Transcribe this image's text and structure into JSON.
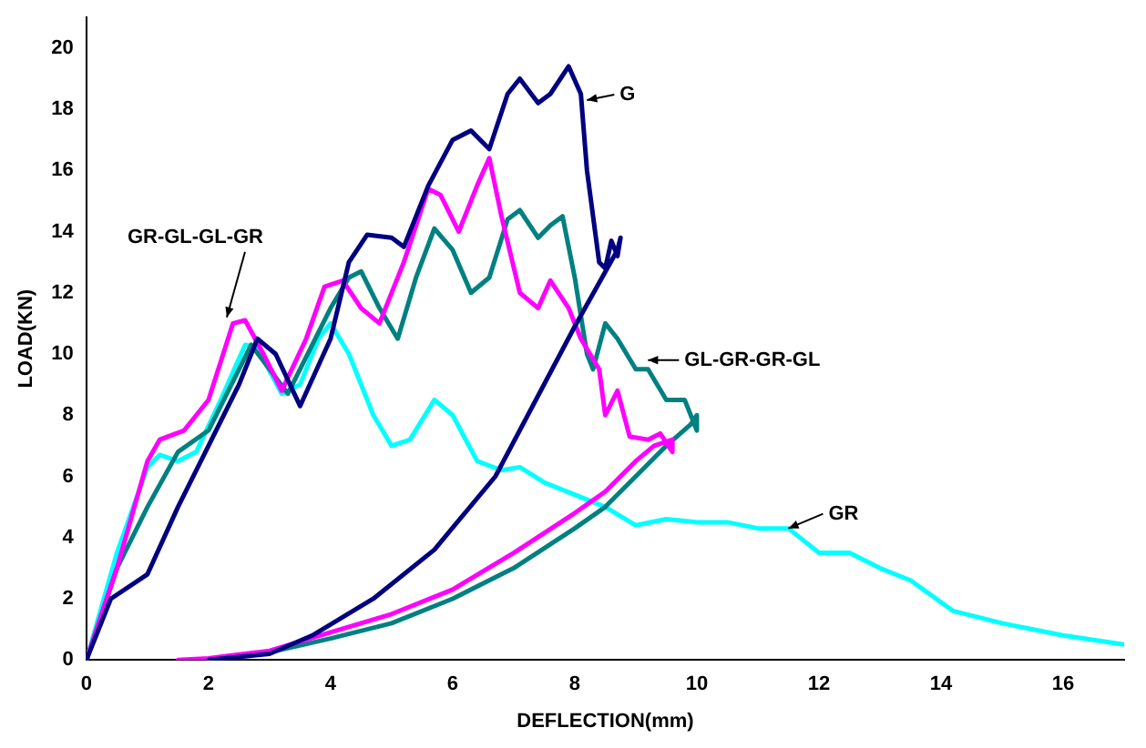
{
  "chart_data": {
    "type": "line",
    "xlabel": "DEFLECTION(mm)",
    "ylabel": "LOAD(KN)",
    "xlim": [
      0,
      17
    ],
    "ylim": [
      0,
      21
    ],
    "xticks": [
      0,
      2,
      4,
      6,
      8,
      10,
      12,
      14,
      16
    ],
    "yticks": [
      0,
      2,
      4,
      6,
      8,
      10,
      12,
      14,
      16,
      18,
      20
    ],
    "grid": false,
    "legend": false,
    "marker": "none",
    "line_style": "solid",
    "series": [
      {
        "color": "#000080",
        "x": [
          0,
          0.4,
          1,
          1.5,
          2,
          2.5,
          2.8,
          3.1,
          3.5,
          4,
          4.3,
          4.6,
          5,
          5.2,
          5.6,
          6,
          6.3,
          6.6,
          6.9,
          7.1,
          7.4,
          7.6,
          7.9,
          8.1,
          8.2,
          8.4,
          8.5,
          8.6,
          8.7,
          8.75,
          8.7,
          8.0,
          6.7,
          5.7,
          4.7,
          3.7,
          3,
          2
        ],
        "values": [
          0,
          2,
          2.8,
          5,
          7,
          9,
          10.5,
          10,
          8.3,
          10.5,
          13,
          13.9,
          13.8,
          13.5,
          15.5,
          17,
          17.3,
          16.7,
          18.5,
          19,
          18.2,
          18.5,
          19.4,
          18.5,
          16,
          13,
          12.8,
          13.7,
          13.2,
          13.8,
          13.4,
          10.9,
          6,
          3.6,
          2,
          0.8,
          0.2,
          0
        ]
      },
      {
        "color": "#ff00ff",
        "x": [
          0,
          0.5,
          1,
          1.2,
          1.6,
          2,
          2.4,
          2.6,
          2.9,
          3.2,
          3.6,
          3.9,
          4.2,
          4.5,
          4.8,
          5.2,
          5.6,
          5.8,
          6.1,
          6.4,
          6.6,
          6.8,
          7.1,
          7.4,
          7.6,
          7.9,
          8.1,
          8.4,
          8.5,
          8.7,
          8.9,
          9.2,
          9.4,
          9.6,
          9.6,
          9.3,
          9,
          8.5,
          8,
          7,
          6,
          5,
          4,
          3,
          2,
          1.5
        ],
        "values": [
          0,
          3,
          6.5,
          7.2,
          7.5,
          8.5,
          11,
          11.1,
          10,
          8.8,
          10.5,
          12.2,
          12.4,
          11.5,
          11,
          13,
          15.4,
          15.2,
          14,
          15.5,
          16.4,
          14.5,
          12,
          11.5,
          12.4,
          11.5,
          10.5,
          9.5,
          8,
          8.8,
          7.3,
          7.2,
          7.4,
          6.8,
          7.2,
          7,
          6.5,
          5.5,
          4.8,
          3.5,
          2.3,
          1.5,
          0.9,
          0.3,
          0.05,
          0
        ]
      },
      {
        "color": "#008080",
        "x": [
          0,
          0.5,
          1,
          1.5,
          2,
          2.5,
          2.7,
          3,
          3.3,
          3.7,
          4,
          4.3,
          4.5,
          4.8,
          5.1,
          5.4,
          5.7,
          6,
          6.3,
          6.6,
          6.9,
          7.1,
          7.4,
          7.6,
          7.8,
          8,
          8.2,
          8.3,
          8.5,
          8.7,
          9,
          9.2,
          9.5,
          9.8,
          10,
          10,
          9.9,
          9.5,
          9,
          8.5,
          8,
          7,
          6,
          5,
          4,
          3,
          2
        ],
        "values": [
          0,
          3,
          5,
          6.8,
          7.5,
          9.5,
          10.3,
          9.5,
          8.7,
          10.3,
          11.5,
          12.5,
          12.7,
          11.5,
          10.5,
          12.5,
          14.1,
          13.4,
          12,
          12.5,
          14.4,
          14.7,
          13.8,
          14.2,
          14.5,
          12.5,
          10,
          9.5,
          11,
          10.5,
          9.5,
          9.5,
          8.5,
          8.5,
          7.5,
          8,
          7.7,
          7,
          6,
          5,
          4.3,
          3,
          2,
          1.2,
          0.7,
          0.25,
          0
        ]
      },
      {
        "color": "#00ffff",
        "x": [
          0,
          0.5,
          1,
          1.2,
          1.5,
          1.8,
          2.2,
          2.6,
          2.8,
          3.2,
          3.5,
          3.8,
          4,
          4.3,
          4.7,
          5,
          5.3,
          5.7,
          6,
          6.4,
          6.8,
          7.1,
          7.5,
          8,
          8.5,
          9,
          9.5,
          10,
          10.5,
          11,
          11.5,
          12,
          12.5,
          13,
          13.5,
          14.2,
          15,
          16,
          17
        ],
        "values": [
          0,
          3.5,
          6.3,
          6.7,
          6.5,
          6.8,
          8.5,
          10.3,
          10.2,
          8.7,
          9,
          10.5,
          11,
          10,
          8,
          7,
          7.2,
          8.5,
          8,
          6.5,
          6.2,
          6.3,
          5.8,
          5.4,
          5,
          4.4,
          4.6,
          4.5,
          4.5,
          4.3,
          4.3,
          3.5,
          3.5,
          3,
          2.6,
          1.6,
          1.2,
          0.8,
          0.5
        ]
      }
    ],
    "annotations": [
      {
        "text": "G",
        "x": 8.2,
        "y": 18.3
      },
      {
        "text": "GR-GL-GL-GR",
        "x": 2.3,
        "y": 11.2
      },
      {
        "text": "GL-GR-GR-GL",
        "x": 9.2,
        "y": 9.8
      },
      {
        "text": "GR",
        "x": 11.5,
        "y": 4.3
      }
    ]
  }
}
